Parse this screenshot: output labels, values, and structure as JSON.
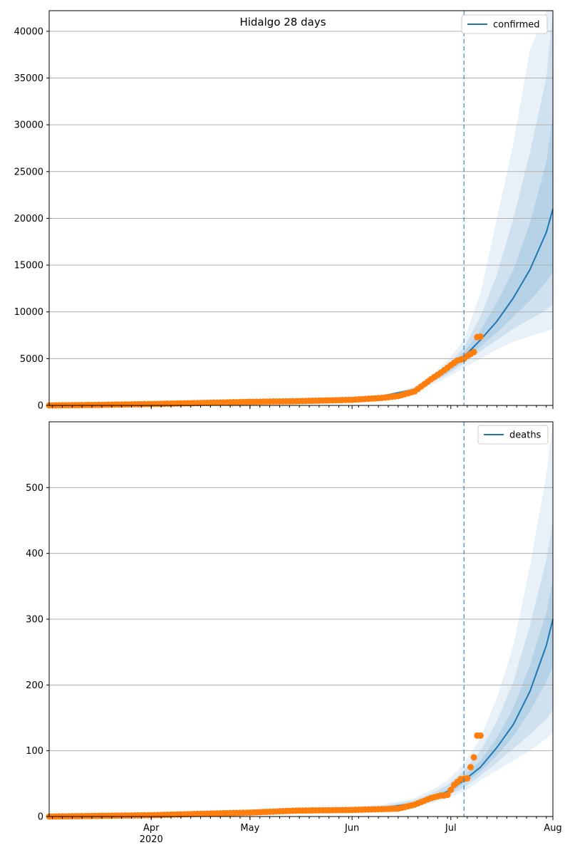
{
  "colors": {
    "model": "#1f77b4",
    "observed": "#ff7f0e",
    "band": "#1f77b4",
    "grid": "#b0b0b0",
    "forecast_line": "#1f77b4"
  },
  "chart_data": [
    {
      "type": "line",
      "title": "Hidalgo 28 days",
      "legend": {
        "label": "confirmed",
        "placement": "top-right"
      },
      "xlim": [
        "2020-03-01",
        "2020-08-01"
      ],
      "ylim": [
        0,
        42200
      ],
      "yticks": [
        0,
        5000,
        10000,
        15000,
        20000,
        25000,
        30000,
        35000,
        40000
      ],
      "grid": "horizontal",
      "forecast_start": "2020-07-05",
      "model": {
        "x": [
          "2020-06-01",
          "2020-06-10",
          "2020-06-20",
          "2020-06-25",
          "2020-06-30",
          "2020-07-05",
          "2020-07-10",
          "2020-07-15",
          "2020-07-20",
          "2020-07-25",
          "2020-07-30",
          "2020-08-01"
        ],
        "median": [
          800,
          1000,
          1700,
          2600,
          3800,
          5200,
          7000,
          9000,
          11500,
          14500,
          18500,
          21000
        ],
        "bands": [
          {
            "lower": [
              800,
              950,
              1500,
              2200,
              3000,
              4000,
              5000,
              6000,
              6800,
              7400,
              7900,
              8200
            ],
            "upper": [
              800,
              1050,
              2000,
              3200,
              4800,
              7000,
              12000,
              20000,
              28000,
              38000,
              42200,
              42200
            ]
          },
          {
            "lower": [
              800,
              970,
              1600,
              2400,
              3300,
              4500,
              5800,
              7000,
              8200,
              9200,
              10200,
              10800
            ],
            "upper": [
              800,
              1030,
              1900,
              2900,
              4300,
              6200,
              9500,
              14000,
              20000,
              27000,
              35000,
              42200
            ]
          },
          {
            "lower": [
              800,
              985,
              1650,
              2500,
              3500,
              4800,
              6300,
              7800,
              9500,
              11200,
              13200,
              14200
            ],
            "upper": [
              800,
              1015,
              1800,
              2750,
              4100,
              5700,
              8000,
              11000,
              14500,
              19500,
              26000,
              31000
            ]
          }
        ]
      },
      "observed": {
        "x": [
          "2020-03-01",
          "2020-03-15",
          "2020-04-01",
          "2020-04-15",
          "2020-05-01",
          "2020-05-15",
          "2020-06-01",
          "2020-06-10",
          "2020-06-15",
          "2020-06-20",
          "2020-06-25",
          "2020-06-28",
          "2020-07-01",
          "2020-07-03",
          "2020-07-05",
          "2020-07-06",
          "2020-07-07",
          "2020-07-08",
          "2020-07-09",
          "2020-07-10"
        ],
        "y": [
          0,
          50,
          150,
          250,
          380,
          450,
          600,
          800,
          1000,
          1500,
          2800,
          3500,
          4300,
          4800,
          5000,
          5300,
          5500,
          5700,
          7300,
          7350
        ]
      }
    },
    {
      "type": "line",
      "title": "",
      "legend": {
        "label": "deaths",
        "placement": "top-right"
      },
      "xlim": [
        "2020-03-01",
        "2020-08-01"
      ],
      "ylim": [
        0,
        600
      ],
      "yticks": [
        0,
        100,
        200,
        300,
        400,
        500
      ],
      "xticks": [
        {
          "date": "2020-04-01",
          "label": "Apr",
          "sub": "2020"
        },
        {
          "date": "2020-05-01",
          "label": "May",
          "sub": ""
        },
        {
          "date": "2020-06-01",
          "label": "Jun",
          "sub": ""
        },
        {
          "date": "2020-07-01",
          "label": "Jul",
          "sub": ""
        },
        {
          "date": "2020-08-01",
          "label": "Aug",
          "sub": ""
        }
      ],
      "grid": "horizontal",
      "forecast_start": "2020-07-05",
      "model": {
        "x": [
          "2020-06-01",
          "2020-06-10",
          "2020-06-20",
          "2020-06-25",
          "2020-06-30",
          "2020-07-05",
          "2020-07-10",
          "2020-07-15",
          "2020-07-20",
          "2020-07-25",
          "2020-07-30",
          "2020-08-01"
        ],
        "median": [
          11,
          13,
          20,
          28,
          38,
          55,
          75,
          105,
          140,
          190,
          260,
          300
        ],
        "bands": [
          {
            "lower": [
              8,
              10,
              15,
              20,
              28,
              38,
              55,
              70,
              85,
              100,
              118,
              128
            ],
            "upper": [
              15,
              18,
              28,
              40,
              55,
              80,
              120,
              180,
              260,
              380,
              520,
              600
            ]
          },
          {
            "lower": [
              9,
              11,
              16,
              23,
              32,
              44,
              62,
              82,
              103,
              125,
              148,
              162
            ],
            "upper": [
              13,
              16,
              25,
              35,
              48,
              70,
              100,
              145,
              205,
              290,
              390,
              450
            ]
          },
          {
            "lower": [
              10,
              12,
              18,
              25,
              35,
              50,
              68,
              93,
              122,
              160,
              205,
              228
            ],
            "upper": [
              12,
              14,
              22,
              31,
              42,
              62,
              85,
              120,
              165,
              230,
              310,
              360
            ]
          }
        ]
      },
      "observed": {
        "x": [
          "2020-03-01",
          "2020-04-01",
          "2020-04-15",
          "2020-05-01",
          "2020-05-15",
          "2020-06-01",
          "2020-06-15",
          "2020-06-20",
          "2020-06-25",
          "2020-06-28",
          "2020-06-29",
          "2020-06-30",
          "2020-07-02",
          "2020-07-04",
          "2020-07-06",
          "2020-07-07",
          "2020-07-08",
          "2020-07-09",
          "2020-07-10"
        ],
        "y": [
          0,
          2,
          4,
          6,
          9,
          10,
          12,
          18,
          28,
          32,
          32,
          33,
          48,
          57,
          58,
          75,
          90,
          123,
          123
        ]
      }
    }
  ]
}
